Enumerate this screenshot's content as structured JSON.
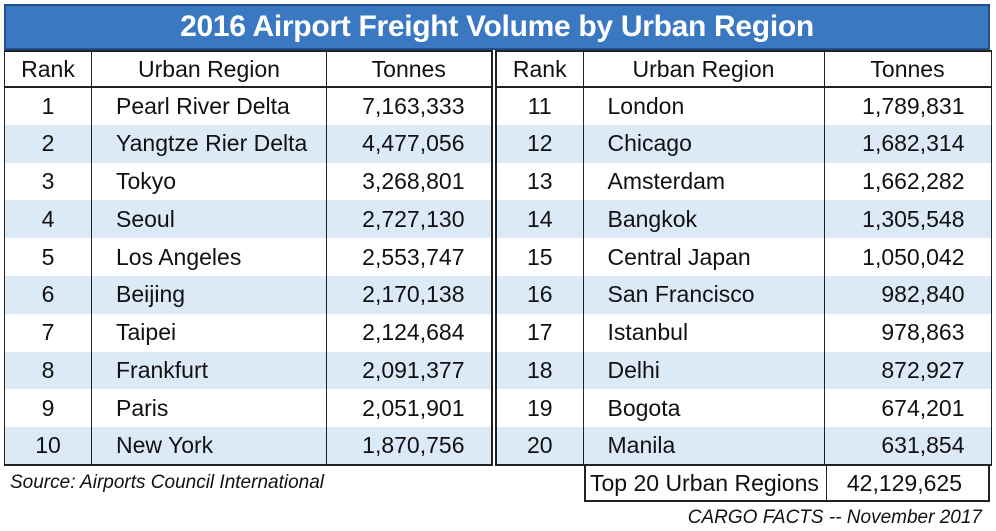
{
  "chart_data": {
    "type": "table",
    "title": "2016 Airport Freight Volume by Urban Region",
    "columns": [
      "Rank",
      "Urban Region",
      "Tonnes"
    ],
    "rows_left": [
      {
        "rank": "1",
        "region": "Pearl River Delta",
        "tonnes": "7,163,333"
      },
      {
        "rank": "2",
        "region": "Yangtze Rier Delta",
        "tonnes": "4,477,056"
      },
      {
        "rank": "3",
        "region": "Tokyo",
        "tonnes": "3,268,801"
      },
      {
        "rank": "4",
        "region": "Seoul",
        "tonnes": "2,727,130"
      },
      {
        "rank": "5",
        "region": "Los Angeles",
        "tonnes": "2,553,747"
      },
      {
        "rank": "6",
        "region": "Beijing",
        "tonnes": "2,170,138"
      },
      {
        "rank": "7",
        "region": "Taipei",
        "tonnes": "2,124,684"
      },
      {
        "rank": "8",
        "region": "Frankfurt",
        "tonnes": "2,091,377"
      },
      {
        "rank": "9",
        "region": "Paris",
        "tonnes": "2,051,901"
      },
      {
        "rank": "10",
        "region": "New York",
        "tonnes": "1,870,756"
      }
    ],
    "rows_right": [
      {
        "rank": "11",
        "region": "London",
        "tonnes": "1,789,831"
      },
      {
        "rank": "12",
        "region": "Chicago",
        "tonnes": "1,682,314"
      },
      {
        "rank": "13",
        "region": "Amsterdam",
        "tonnes": "1,662,282"
      },
      {
        "rank": "14",
        "region": "Bangkok",
        "tonnes": "1,305,548"
      },
      {
        "rank": "15",
        "region": "Central Japan",
        "tonnes": "1,050,042"
      },
      {
        "rank": "16",
        "region": "San Francisco",
        "tonnes": "982,840"
      },
      {
        "rank": "17",
        "region": "Istanbul",
        "tonnes": "978,863"
      },
      {
        "rank": "18",
        "region": "Delhi",
        "tonnes": "872,927"
      },
      {
        "rank": "19",
        "region": "Bogota",
        "tonnes": "674,201"
      },
      {
        "rank": "20",
        "region": "Manila",
        "tonnes": "631,854"
      }
    ],
    "total": {
      "label": "Top 20 Urban Regions",
      "value": "42,129,625"
    },
    "source": "Source: Airports Council International",
    "credit": "CARGO FACTS -- November 2017"
  },
  "colors": {
    "title_bg": "#3a78c2",
    "row_shade": "#dce9f7",
    "text": "#111111"
  }
}
